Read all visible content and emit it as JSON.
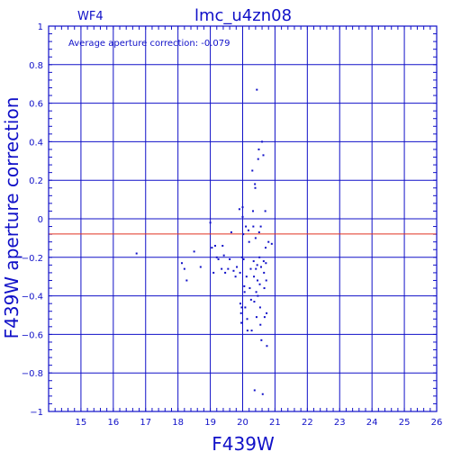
{
  "chart_data": {
    "type": "scatter",
    "title": "lmc_u4zn08",
    "corner_label": "WF4",
    "annotation": "Average aperture correction:  -0.079",
    "xlabel": "F439W",
    "ylabel": "F439W aperture correction",
    "xlim": [
      14,
      26
    ],
    "ylim": [
      -1,
      1
    ],
    "x_ticks": [
      15,
      16,
      17,
      18,
      19,
      20,
      21,
      22,
      23,
      24,
      25,
      26
    ],
    "y_ticks": [
      -1,
      -0.8,
      -0.6,
      -0.4,
      -0.2,
      0,
      0.2,
      0.4,
      0.6,
      0.8,
      1
    ],
    "grid": true,
    "reference_line": {
      "y": -0.079,
      "color": "#e03020"
    },
    "colors": {
      "axes": "#1010c8",
      "points": "#1010c8"
    },
    "points": [
      [
        16.72,
        -0.18
      ],
      [
        18.12,
        -0.23
      ],
      [
        18.2,
        -0.26
      ],
      [
        18.27,
        -0.32
      ],
      [
        18.5,
        -0.17
      ],
      [
        18.7,
        -0.25
      ],
      [
        19.0,
        -0.02
      ],
      [
        19.05,
        -0.15
      ],
      [
        19.1,
        -0.28
      ],
      [
        19.15,
        -0.14
      ],
      [
        19.2,
        -0.2
      ],
      [
        19.25,
        -0.21
      ],
      [
        19.35,
        -0.26
      ],
      [
        19.38,
        -0.14
      ],
      [
        19.42,
        -0.19
      ],
      [
        19.46,
        -0.28
      ],
      [
        19.55,
        -0.26
      ],
      [
        19.6,
        -0.21
      ],
      [
        19.65,
        -0.07
      ],
      [
        19.72,
        -0.27
      ],
      [
        19.78,
        -0.3
      ],
      [
        19.82,
        -0.25
      ],
      [
        19.9,
        0.05
      ],
      [
        19.92,
        -0.28
      ],
      [
        19.93,
        -0.44
      ],
      [
        19.95,
        -0.49
      ],
      [
        19.96,
        -0.54
      ],
      [
        19.97,
        -0.46
      ],
      [
        19.98,
        -0.2
      ],
      [
        20.0,
        0.06
      ],
      [
        20.0,
        0.01
      ],
      [
        20.02,
        -0.08
      ],
      [
        20.03,
        -0.21
      ],
      [
        20.05,
        -0.35
      ],
      [
        20.06,
        -0.38
      ],
      [
        20.08,
        -0.46
      ],
      [
        20.1,
        -0.04
      ],
      [
        20.12,
        -0.3
      ],
      [
        20.14,
        -0.52
      ],
      [
        20.15,
        -0.58
      ],
      [
        20.18,
        -0.06
      ],
      [
        20.2,
        -0.12
      ],
      [
        20.22,
        -0.36
      ],
      [
        20.25,
        -0.26
      ],
      [
        20.26,
        -0.42
      ],
      [
        20.28,
        -0.58
      ],
      [
        20.3,
        0.25
      ],
      [
        20.32,
        0.04
      ],
      [
        20.33,
        -0.04
      ],
      [
        20.34,
        -0.22
      ],
      [
        20.35,
        -0.3
      ],
      [
        20.36,
        -0.43
      ],
      [
        20.37,
        -0.89
      ],
      [
        20.38,
        0.18
      ],
      [
        20.39,
        0.16
      ],
      [
        20.4,
        -0.1
      ],
      [
        20.41,
        -0.26
      ],
      [
        20.42,
        -0.38
      ],
      [
        20.43,
        -0.51
      ],
      [
        20.44,
        0.67
      ],
      [
        20.45,
        -0.24
      ],
      [
        20.46,
        -0.32
      ],
      [
        20.47,
        -0.4
      ],
      [
        20.48,
        0.31
      ],
      [
        20.5,
        0.36
      ],
      [
        20.51,
        -0.07
      ],
      [
        20.52,
        -0.2
      ],
      [
        20.53,
        -0.34
      ],
      [
        20.54,
        -0.46
      ],
      [
        20.55,
        -0.55
      ],
      [
        20.56,
        -0.04
      ],
      [
        20.57,
        -0.25
      ],
      [
        20.58,
        -0.63
      ],
      [
        20.6,
        0.4
      ],
      [
        20.62,
        -0.91
      ],
      [
        20.64,
        0.33
      ],
      [
        20.65,
        -0.22
      ],
      [
        20.66,
        -0.28
      ],
      [
        20.67,
        -0.36
      ],
      [
        20.68,
        -0.51
      ],
      [
        20.7,
        0.04
      ],
      [
        20.71,
        -0.15
      ],
      [
        20.72,
        -0.23
      ],
      [
        20.73,
        -0.32
      ],
      [
        20.74,
        -0.49
      ],
      [
        20.75,
        -0.66
      ],
      [
        20.8,
        -0.12
      ],
      [
        20.9,
        -0.13
      ]
    ]
  }
}
